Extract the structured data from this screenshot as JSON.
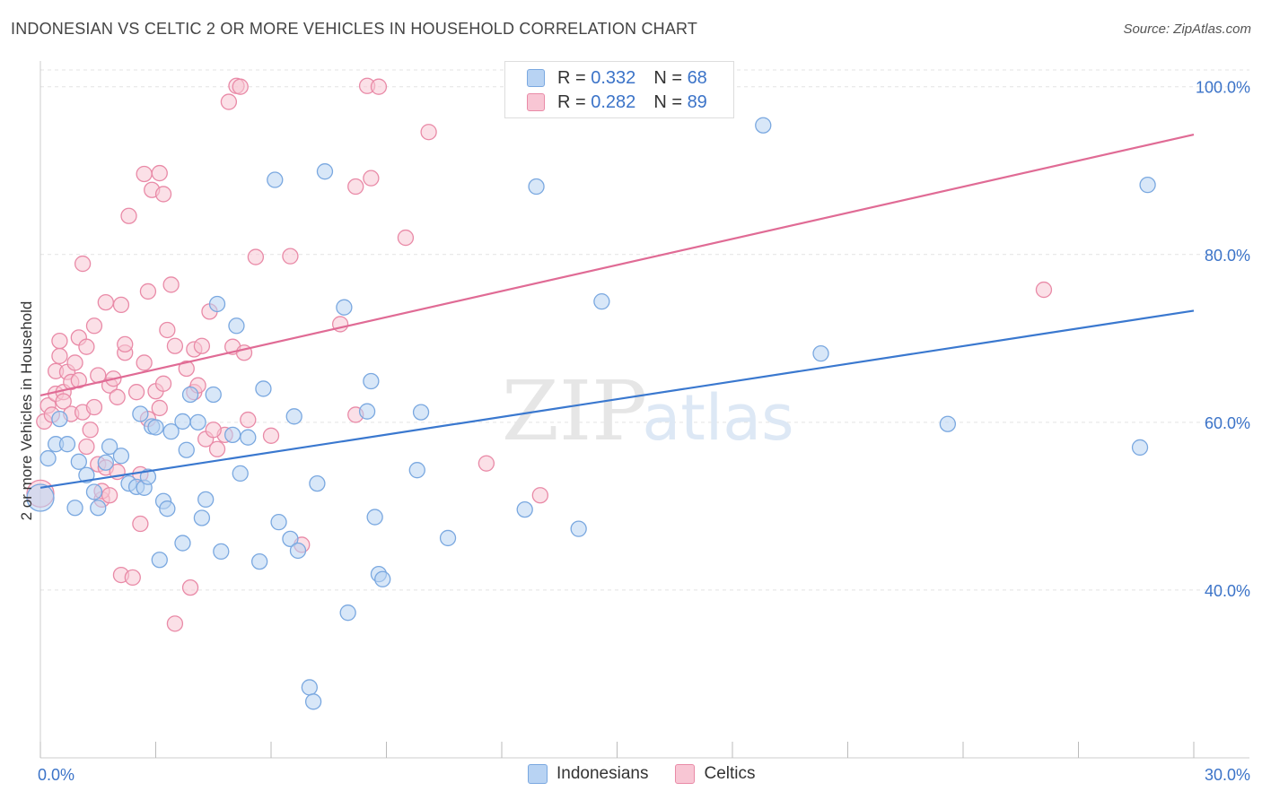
{
  "title": "INDONESIAN VS CELTIC 2 OR MORE VEHICLES IN HOUSEHOLD CORRELATION CHART",
  "source": "Source: ZipAtlas.com",
  "watermark": {
    "zip": "ZIP",
    "atlas": "atlas"
  },
  "legend": {
    "rows": [
      {
        "r_label": "R =",
        "r_value": "0.332",
        "n_label": "N =",
        "n_value": "68"
      },
      {
        "r_label": "R =",
        "r_value": "0.282",
        "n_label": "N =",
        "n_value": "89"
      }
    ],
    "bottom": [
      "Indonesians",
      "Celtics"
    ]
  },
  "colors": {
    "blue_fill": "#b8d3f3",
    "blue_stroke": "#7aa8e0",
    "blue_line": "#3a78cf",
    "pink_fill": "#f8c6d4",
    "pink_stroke": "#e98aa7",
    "pink_line": "#e06b95",
    "tick_text": "#3b73c8",
    "grid": "#e3e3e3"
  },
  "chart_data": {
    "type": "scatter",
    "title": "INDONESIAN VS CELTIC 2 OR MORE VEHICLES IN HOUSEHOLD CORRELATION CHART",
    "xlabel": "",
    "ylabel": "2 or more Vehicles in Household",
    "xlim": [
      0,
      30
    ],
    "ylim": [
      20,
      102
    ],
    "x_tick_labels": [
      "0.0%",
      "30.0%"
    ],
    "y_ticks": [
      40,
      60,
      80,
      100
    ],
    "y_tick_labels": [
      "40.0%",
      "60.0%",
      "80.0%",
      "100.0%"
    ],
    "grid": true,
    "series": [
      {
        "name": "Indonesians",
        "r": 0.332,
        "n": 68,
        "trend": {
          "x0": 0,
          "y0": 52.2,
          "x1": 30,
          "y1": 73.3
        },
        "points": [
          [
            0.0,
            51.0
          ],
          [
            0.2,
            55.7
          ],
          [
            0.4,
            57.4
          ],
          [
            0.5,
            60.4
          ],
          [
            0.7,
            57.4
          ],
          [
            0.9,
            49.8
          ],
          [
            1.0,
            55.3
          ],
          [
            1.2,
            53.7
          ],
          [
            1.4,
            51.7
          ],
          [
            1.5,
            49.8
          ],
          [
            1.7,
            55.2
          ],
          [
            1.8,
            57.1
          ],
          [
            2.1,
            56.0
          ],
          [
            2.3,
            52.7
          ],
          [
            2.5,
            52.3
          ],
          [
            2.6,
            61.0
          ],
          [
            2.7,
            52.2
          ],
          [
            2.8,
            53.5
          ],
          [
            2.9,
            59.5
          ],
          [
            3.0,
            59.4
          ],
          [
            3.1,
            43.6
          ],
          [
            3.2,
            50.6
          ],
          [
            3.3,
            49.7
          ],
          [
            3.4,
            58.9
          ],
          [
            3.7,
            60.1
          ],
          [
            3.7,
            45.6
          ],
          [
            3.8,
            56.7
          ],
          [
            3.9,
            63.3
          ],
          [
            4.1,
            60.0
          ],
          [
            4.2,
            48.6
          ],
          [
            4.3,
            50.8
          ],
          [
            4.5,
            63.3
          ],
          [
            4.6,
            74.1
          ],
          [
            4.7,
            44.6
          ],
          [
            5.0,
            58.5
          ],
          [
            5.1,
            71.5
          ],
          [
            5.2,
            53.9
          ],
          [
            5.4,
            58.2
          ],
          [
            5.7,
            43.4
          ],
          [
            5.8,
            64.0
          ],
          [
            6.1,
            88.9
          ],
          [
            6.2,
            48.1
          ],
          [
            6.5,
            46.1
          ],
          [
            6.6,
            60.7
          ],
          [
            6.7,
            44.7
          ],
          [
            7.0,
            28.4
          ],
          [
            7.1,
            26.7
          ],
          [
            7.2,
            52.7
          ],
          [
            7.4,
            89.9
          ],
          [
            7.9,
            73.7
          ],
          [
            8.0,
            37.3
          ],
          [
            8.5,
            61.3
          ],
          [
            8.6,
            64.9
          ],
          [
            8.7,
            48.7
          ],
          [
            8.8,
            41.9
          ],
          [
            8.9,
            41.3
          ],
          [
            9.8,
            54.3
          ],
          [
            9.9,
            61.2
          ],
          [
            10.6,
            46.2
          ],
          [
            12.6,
            49.6
          ],
          [
            12.9,
            88.1
          ],
          [
            14.0,
            47.3
          ],
          [
            14.6,
            74.4
          ],
          [
            18.8,
            95.4
          ],
          [
            20.3,
            68.2
          ],
          [
            23.6,
            59.8
          ],
          [
            28.6,
            57.0
          ],
          [
            28.8,
            88.3
          ]
        ]
      },
      {
        "name": "Celtics",
        "r": 0.282,
        "n": 89,
        "trend": {
          "x0": 0,
          "y0": 63.2,
          "x1": 30,
          "y1": 94.3
        },
        "points": [
          [
            0.0,
            51.5
          ],
          [
            0.1,
            60.1
          ],
          [
            0.2,
            62.0
          ],
          [
            0.3,
            60.9
          ],
          [
            0.4,
            63.4
          ],
          [
            0.4,
            66.1
          ],
          [
            0.5,
            67.9
          ],
          [
            0.5,
            69.7
          ],
          [
            0.6,
            63.6
          ],
          [
            0.6,
            62.5
          ],
          [
            0.7,
            66.0
          ],
          [
            0.8,
            64.8
          ],
          [
            0.8,
            61.0
          ],
          [
            0.9,
            67.1
          ],
          [
            1.0,
            70.1
          ],
          [
            1.0,
            65.0
          ],
          [
            1.1,
            61.2
          ],
          [
            1.1,
            78.9
          ],
          [
            1.2,
            57.1
          ],
          [
            1.2,
            69.0
          ],
          [
            1.3,
            59.1
          ],
          [
            1.4,
            61.8
          ],
          [
            1.4,
            71.5
          ],
          [
            1.5,
            65.6
          ],
          [
            1.5,
            55.0
          ],
          [
            1.6,
            50.8
          ],
          [
            1.6,
            51.8
          ],
          [
            1.7,
            74.3
          ],
          [
            1.7,
            54.6
          ],
          [
            1.8,
            64.4
          ],
          [
            1.8,
            51.3
          ],
          [
            1.9,
            65.2
          ],
          [
            2.0,
            54.1
          ],
          [
            2.0,
            63.0
          ],
          [
            2.1,
            41.8
          ],
          [
            2.1,
            74.0
          ],
          [
            2.2,
            68.3
          ],
          [
            2.2,
            69.3
          ],
          [
            2.3,
            84.6
          ],
          [
            2.4,
            41.5
          ],
          [
            2.5,
            63.6
          ],
          [
            2.6,
            53.8
          ],
          [
            2.6,
            47.9
          ],
          [
            2.7,
            89.6
          ],
          [
            2.7,
            67.1
          ],
          [
            2.8,
            60.4
          ],
          [
            2.8,
            75.6
          ],
          [
            2.9,
            87.7
          ],
          [
            3.0,
            63.7
          ],
          [
            3.1,
            89.7
          ],
          [
            3.1,
            61.7
          ],
          [
            3.2,
            64.6
          ],
          [
            3.2,
            87.2
          ],
          [
            3.3,
            71.0
          ],
          [
            3.4,
            76.4
          ],
          [
            3.5,
            69.1
          ],
          [
            3.5,
            36.0
          ],
          [
            3.8,
            66.4
          ],
          [
            3.9,
            40.3
          ],
          [
            4.0,
            63.6
          ],
          [
            4.0,
            68.7
          ],
          [
            4.1,
            64.4
          ],
          [
            4.2,
            69.1
          ],
          [
            4.3,
            58.0
          ],
          [
            4.4,
            73.2
          ],
          [
            4.6,
            56.8
          ],
          [
            4.8,
            58.5
          ],
          [
            4.9,
            98.2
          ],
          [
            5.0,
            69.0
          ],
          [
            5.1,
            100.1
          ],
          [
            5.2,
            100.0
          ],
          [
            5.3,
            68.3
          ],
          [
            5.4,
            60.3
          ],
          [
            5.6,
            79.7
          ],
          [
            6.0,
            58.4
          ],
          [
            6.5,
            79.8
          ],
          [
            6.8,
            45.4
          ],
          [
            7.8,
            71.7
          ],
          [
            8.2,
            88.1
          ],
          [
            8.2,
            60.9
          ],
          [
            8.5,
            100.1
          ],
          [
            8.8,
            100.0
          ],
          [
            8.6,
            89.1
          ],
          [
            9.5,
            82.0
          ],
          [
            10.1,
            94.6
          ],
          [
            11.6,
            55.1
          ],
          [
            13.0,
            51.3
          ],
          [
            26.1,
            75.8
          ],
          [
            4.5,
            59.1
          ]
        ]
      }
    ]
  }
}
